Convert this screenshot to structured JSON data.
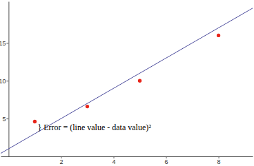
{
  "chart_data": {
    "type": "scatter",
    "annotation": "} Error = (line value - data value)²",
    "xlim": [
      -0.3,
      9.3
    ],
    "ylim": [
      0,
      20.5
    ],
    "xticks": [
      2,
      4,
      6,
      8
    ],
    "yticks": [
      5,
      10,
      15
    ],
    "series": [
      {
        "type": "scatter",
        "color": "#e8251a",
        "marker": "circle",
        "x": [
          1,
          3,
          5,
          8
        ],
        "values": [
          4.6,
          6.6,
          10,
          16
        ]
      },
      {
        "type": "line",
        "color": "#4e4e9e",
        "line_style": "solid",
        "x": [
          -0.3,
          9.3
        ],
        "values": [
          0.4,
          19.6
        ]
      }
    ]
  }
}
